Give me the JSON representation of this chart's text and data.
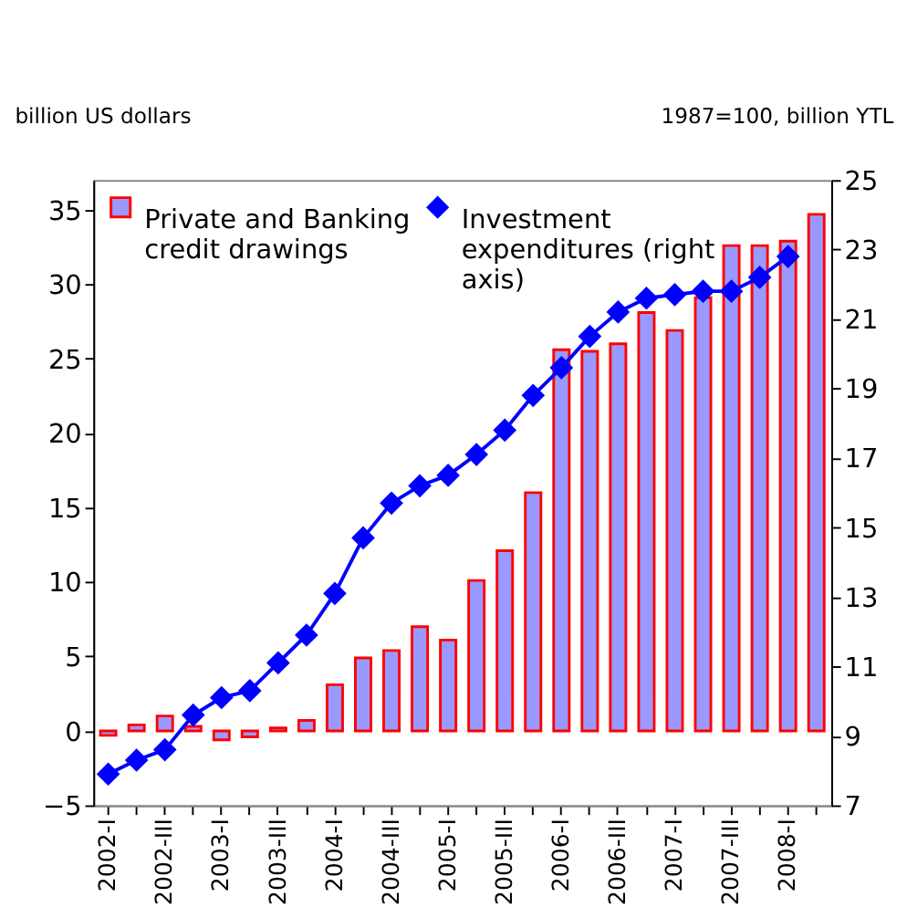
{
  "chart_data": {
    "type": "bar",
    "ylabel": "billion US dollars",
    "y2label": "1987=100, billion YTL",
    "categories": [
      "2002-I",
      null,
      "2002-III",
      null,
      "2003-I",
      null,
      "2003-III",
      null,
      "2004-I",
      null,
      "2004-III",
      null,
      "2005-I",
      null,
      "2005-III",
      null,
      "2006-I",
      null,
      "2006-III",
      null,
      "2007-I",
      null,
      "2007-III",
      null,
      "2008-I",
      null
    ],
    "series": [
      {
        "name": "Private and Banking credit drawings",
        "color": "#9999ff",
        "values": [
          -0.3,
          0.4,
          1.0,
          0.3,
          -0.6,
          -0.4,
          0.2,
          0.7,
          3.1,
          4.9,
          5.4,
          7.0,
          6.1,
          10.1,
          12.1,
          16.0,
          25.6,
          25.5,
          26.0,
          28.1,
          26.9,
          29.1,
          32.6,
          32.6,
          32.9,
          34.7
        ]
      },
      {
        "name": "Investment expenditures (right axis)",
        "type": "line",
        "axis": "y2",
        "color": "#0000ff",
        "marker": "diamond",
        "values": [
          7.9,
          8.3,
          8.6,
          9.6,
          10.1,
          10.3,
          11.1,
          11.9,
          13.1,
          14.7,
          15.7,
          16.2,
          16.5,
          17.1,
          17.8,
          18.8,
          19.6,
          20.5,
          21.2,
          21.6,
          21.7,
          21.8,
          21.8,
          22.2,
          22.8,
          null
        ]
      }
    ],
    "ylim": [
      -5,
      37
    ],
    "yticks": [
      -5,
      0,
      5,
      10,
      15,
      20,
      25,
      30,
      35
    ],
    "y2lim": [
      7,
      25
    ],
    "y2ticks": [
      7,
      9,
      11,
      13,
      15,
      17,
      19,
      21,
      23,
      25
    ],
    "grid": false,
    "legend": "top left"
  }
}
